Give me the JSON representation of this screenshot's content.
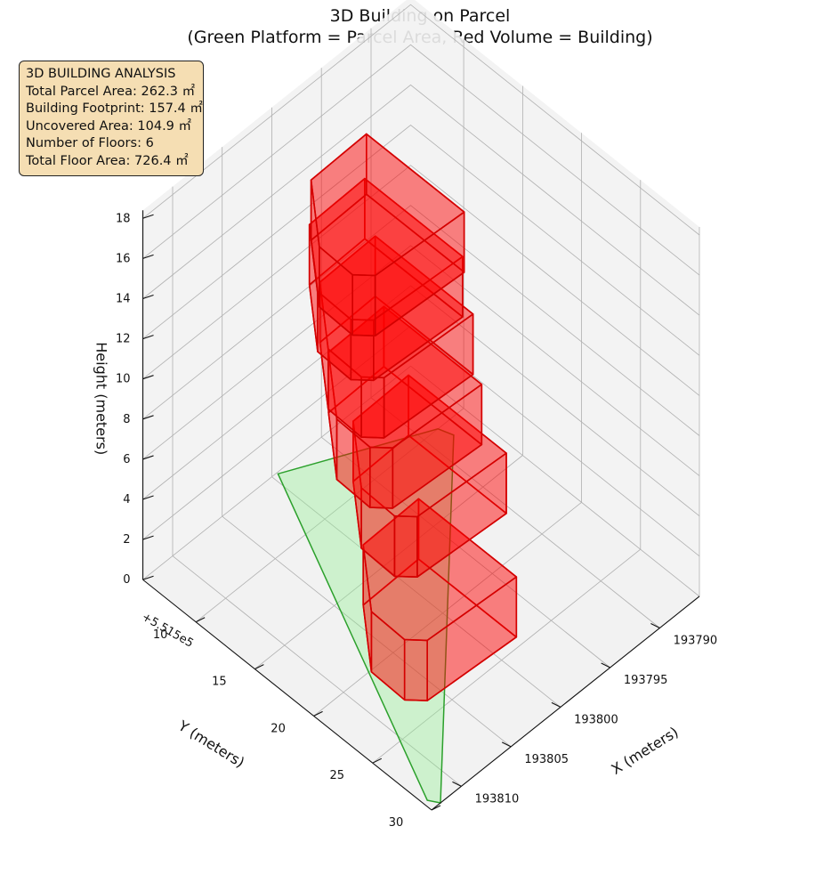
{
  "title": {
    "line1": "3D Building on Parcel",
    "line2": "(Green Platform = Parcel Area, Red Volume = Building)"
  },
  "info_box": {
    "heading": "3D BUILDING ANALYSIS",
    "lines": [
      "Total Parcel Area: 262.3 ㎡",
      "Building Footprint: 157.4 ㎡",
      "Uncovered Area: 104.9 ㎡",
      "Number of Floors: 6",
      "Total Floor Area: 726.4 ㎡"
    ]
  },
  "colors": {
    "parcel_fill": "#90ee90",
    "parcel_edge": "#2ca02c",
    "building_fill": "#ff0000",
    "building_edge": "#d40000",
    "pane": "#f2f2f2",
    "grid": "#b0b0b0",
    "infobox_bg": "#f5deb3"
  },
  "chart_data": {
    "type": "3d-polygon-extrusion",
    "title": "3D Building on Parcel\n(Green Platform = Parcel Area, Red Volume = Building)",
    "xlabel": "X (meters)",
    "ylabel": "Y (meters)",
    "zlabel": "Height (meters)",
    "y_offset_label": "+5.515e5",
    "x_ticks": [
      193790,
      193795,
      193800,
      193805,
      193810
    ],
    "x_tick_labels": [
      "193790",
      "193795",
      "193800",
      "193805",
      "193810"
    ],
    "y_ticks": [
      10,
      15,
      20,
      25,
      30
    ],
    "y_tick_labels": [
      "10",
      "15",
      "20",
      "25",
      "30"
    ],
    "z_ticks": [
      0,
      2,
      4,
      6,
      8,
      10,
      12,
      14,
      16,
      18
    ],
    "z_tick_labels": [
      "0",
      "2",
      "4",
      "6",
      "8",
      "10",
      "12",
      "14",
      "16",
      "18"
    ],
    "xlim": [
      193786,
      193813
    ],
    "ylim": [
      5.5,
      30
    ],
    "zlim": [
      0,
      18.4
    ],
    "view": {
      "elev": 30,
      "azim": 45
    },
    "parcel": {
      "name": "Parcel Area",
      "z": 0,
      "polygon": [
        [
          193812.1,
          30.0
        ],
        [
          193788.2,
          11.0
        ],
        [
          193788.6,
          10.0
        ],
        [
          193799.5,
          5.6
        ],
        [
          193812.6,
          29.3
        ]
      ]
    },
    "building": {
      "name": "Building",
      "floor_height": 3,
      "num_floors": 6,
      "base_polygon": [
        [
          193807.3,
          20.1
        ],
        [
          193803.5,
          16.2
        ],
        [
          193797.8,
          16.1
        ],
        [
          193797.8,
          24.4
        ],
        [
          193806.3,
          24.0
        ],
        [
          193807.4,
          23.0
        ]
      ],
      "floors": [
        {
          "floor": 1,
          "z0": 0,
          "z1": 3,
          "dx": 0,
          "dy": 0
        },
        {
          "floor": 2,
          "z0": 3,
          "z1": 6,
          "dx": -3.5,
          "dy": -3.8
        },
        {
          "floor": 3,
          "z0": 6,
          "z1": 9,
          "dx": -2.8,
          "dy": -5.3
        },
        {
          "floor": 4,
          "z0": 9,
          "z1": 12,
          "dx": -3.0,
          "dy": -6.2
        },
        {
          "floor": 5,
          "z0": 12,
          "z1": 15,
          "dx": -2.3,
          "dy": -6.5
        },
        {
          "floor": 6,
          "z0": 15,
          "z1": 18,
          "dx": -1.4,
          "dy": -5.6
        }
      ]
    }
  }
}
